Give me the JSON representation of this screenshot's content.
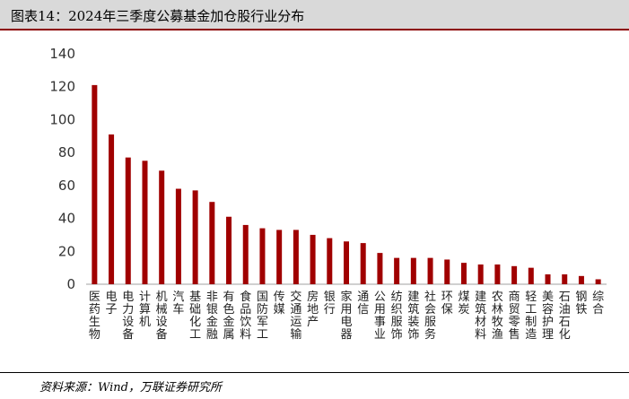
{
  "header": {
    "title": "图表14：2024年三季度公募基金加仓股行业分布"
  },
  "footer": {
    "source": "资料来源：Wind，万联证券研究所"
  },
  "colors": {
    "bar": "#a00000",
    "axis": "#a0a0a0",
    "title_bg": "#d9d9d9",
    "title_rule": "#8c0000"
  },
  "chart_data": {
    "type": "bar",
    "title": "",
    "xlabel": "",
    "ylabel": "",
    "ylim": [
      0,
      140
    ],
    "yticks": [
      0,
      20,
      40,
      60,
      80,
      100,
      120,
      140
    ],
    "grid": false,
    "categories": [
      "医药生物",
      "电子",
      "电力设备",
      "计算机",
      "机械设备",
      "汽车",
      "基础化工",
      "非银金融",
      "有色金属",
      "食品饮料",
      "国防军工",
      "传媒",
      "交通运输",
      "房地产",
      "银行",
      "家用电器",
      "通信",
      "公用事业",
      "纺织服饰",
      "建筑装饰",
      "社会服务",
      "环保",
      "煤炭",
      "建筑材料",
      "农林牧渔",
      "商贸零售",
      "轻工制造",
      "美容护理",
      "石油石化",
      "钢铁",
      "综合"
    ],
    "values": [
      121,
      91,
      77,
      75,
      69,
      58,
      57,
      50,
      41,
      36,
      34,
      33,
      33,
      30,
      28,
      26,
      25,
      19,
      16,
      16,
      16,
      15,
      13,
      12,
      12,
      11,
      10,
      6,
      6,
      5,
      3
    ]
  }
}
